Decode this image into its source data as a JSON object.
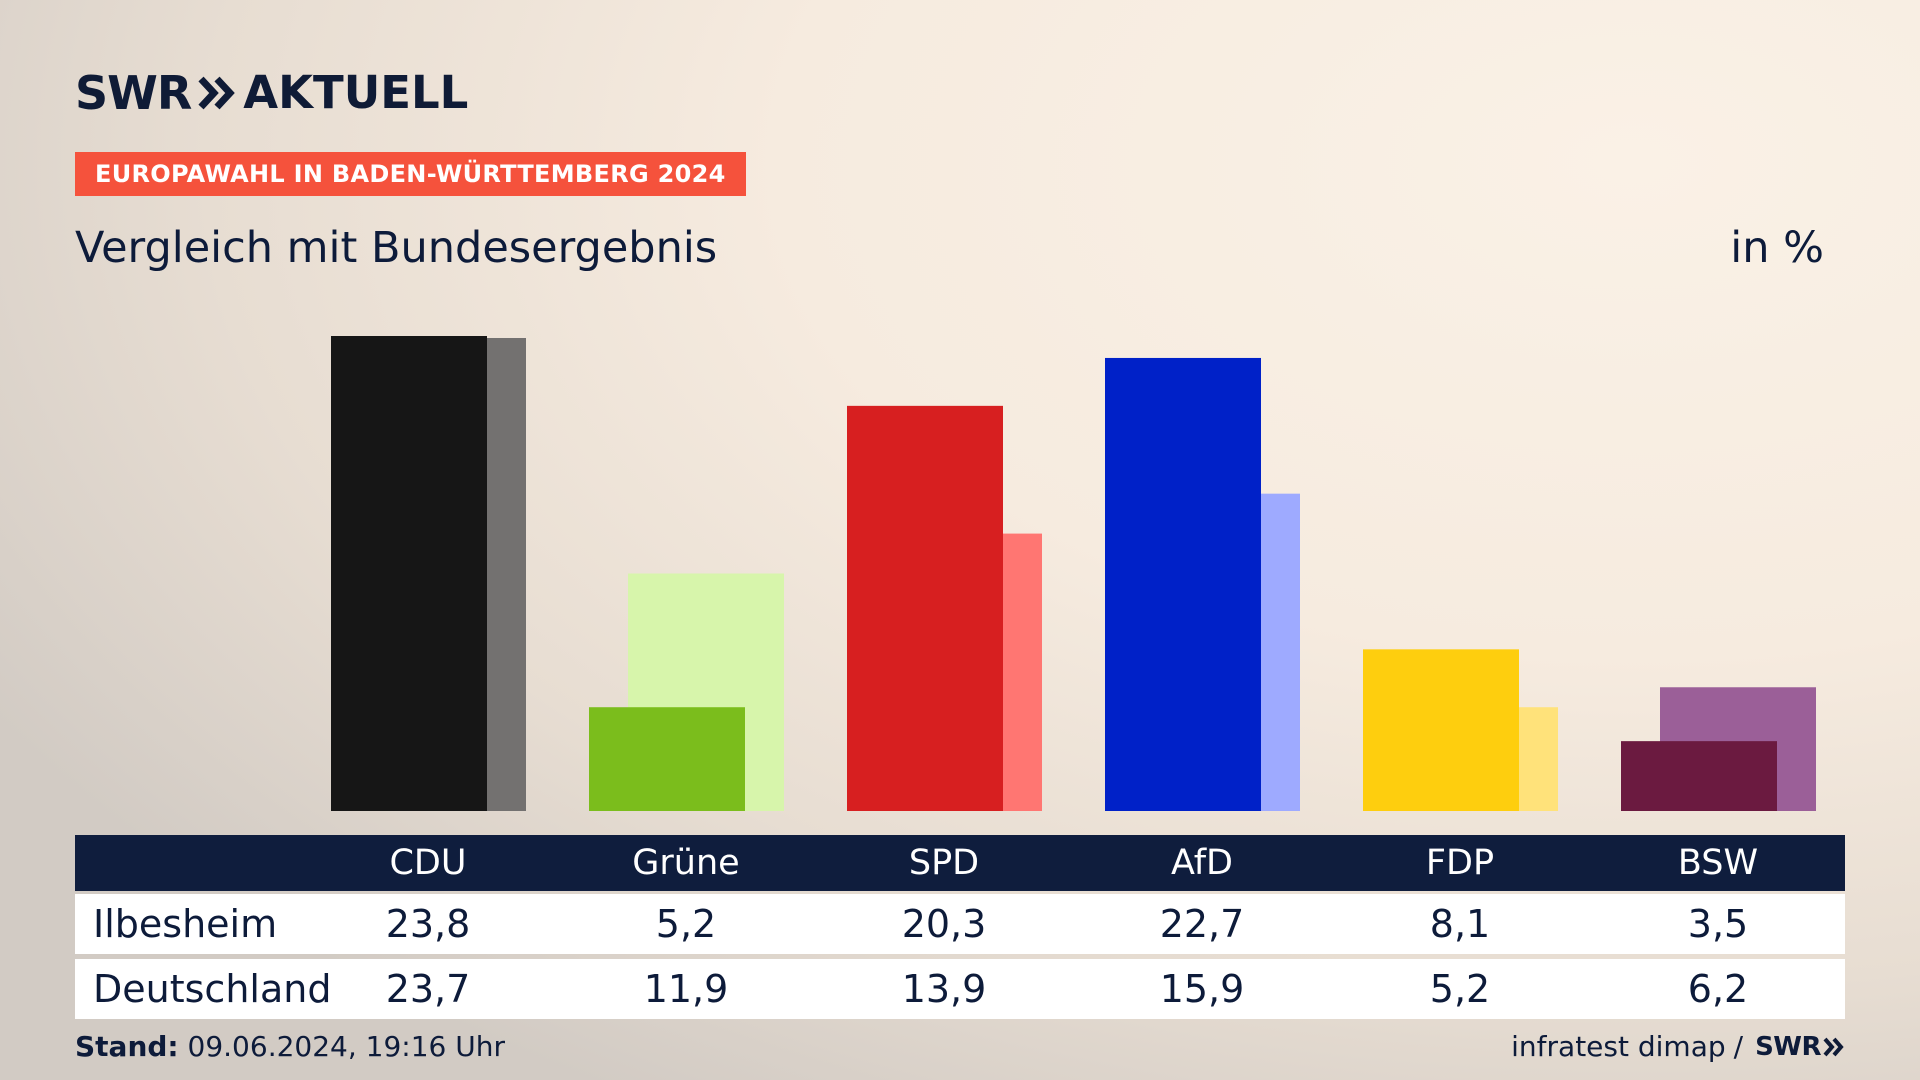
{
  "brand": {
    "swr": "SWR",
    "aktuell": "AKTUELL",
    "arrows_icon": "double-chevron-right-icon"
  },
  "tag": "EUROPAWAHL IN BADEN-WÜRTTEMBERG 2024",
  "subtitle": "Vergleich mit Bundesergebnis",
  "unit": "in %",
  "table": {
    "rows": [
      {
        "label": "Ilbesheim",
        "values": [
          "23,8",
          "5,2",
          "20,3",
          "22,7",
          "8,1",
          "3,5"
        ]
      },
      {
        "label": "Deutschland",
        "values": [
          "23,7",
          "11,9",
          "13,9",
          "15,9",
          "5,2",
          "6,2"
        ]
      }
    ]
  },
  "footer": {
    "stand_label": "Stand:",
    "stand_value": "09.06.2024, 19:16 Uhr",
    "source": "infratest dimap",
    "separator": "/",
    "swr": "SWR"
  },
  "colors": {
    "tag_bg": "#f5523c",
    "header_bg": "#0f1d3d",
    "local": [
      "#161616",
      "#7bbd1c",
      "#d71f20",
      "#0021c8",
      "#fece0e",
      "#6b1a40"
    ],
    "national": [
      "#737170",
      "#d7f5ab",
      "#ff7672",
      "#9eaaff",
      "#ffe27a",
      "#9b5f98"
    ]
  },
  "chart_data": {
    "type": "bar",
    "categories": [
      "CDU",
      "Grüne",
      "SPD",
      "AfD",
      "FDP",
      "BSW"
    ],
    "series": [
      {
        "name": "Ilbesheim",
        "values": [
          23.8,
          5.2,
          20.3,
          22.7,
          8.1,
          3.5
        ]
      },
      {
        "name": "Deutschland",
        "values": [
          23.7,
          11.9,
          13.9,
          15.9,
          5.2,
          6.2
        ]
      }
    ],
    "ylim": [
      0,
      23.8
    ],
    "grid": false,
    "legend": "none"
  }
}
